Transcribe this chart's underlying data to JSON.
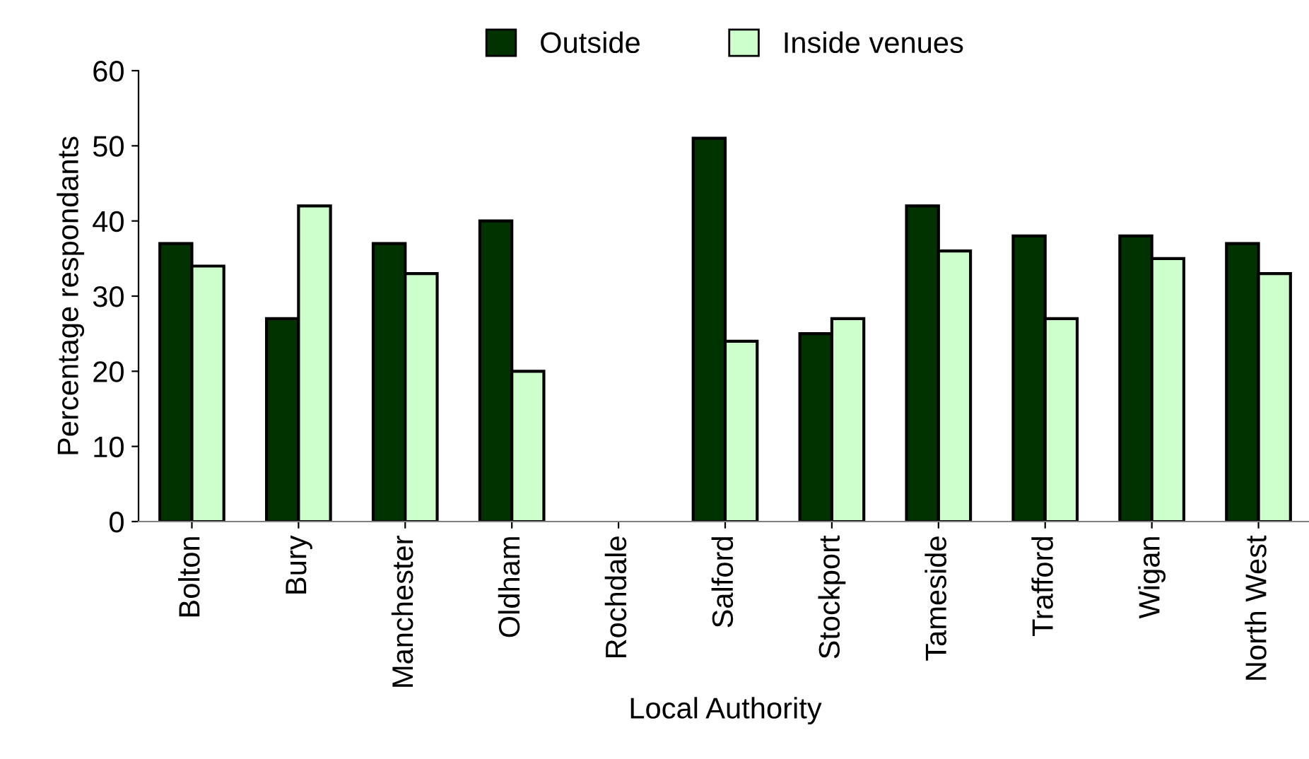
{
  "chart_data": {
    "type": "bar",
    "xlabel": "Local Authority",
    "ylabel": "Percentage respondants",
    "categories": [
      "Bolton",
      "Bury",
      "Manchester",
      "Oldham",
      "Rochdale",
      "Salford",
      "Stockport",
      "Tameside",
      "Trafford",
      "Wigan",
      "North West"
    ],
    "series": [
      {
        "name": "Outside",
        "color": "#003300",
        "values": [
          37,
          27,
          37,
          40,
          null,
          51,
          25,
          42,
          38,
          38,
          37
        ]
      },
      {
        "name": "Inside venues",
        "color": "#ccffcc",
        "values": [
          34,
          42,
          33,
          20,
          null,
          24,
          27,
          36,
          27,
          35,
          33
        ]
      }
    ],
    "ylim": [
      0,
      60
    ],
    "yticks": [
      0,
      10,
      20,
      30,
      40,
      50,
      60
    ],
    "grid": false,
    "legend": "top"
  }
}
